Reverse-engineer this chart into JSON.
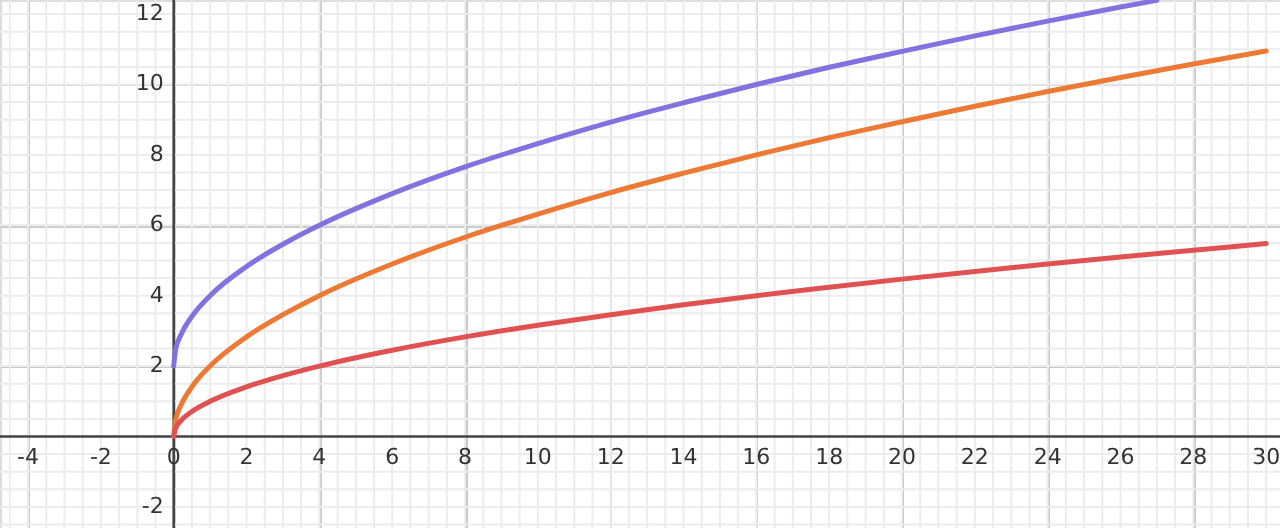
{
  "chart_data": {
    "type": "line",
    "xlim": [
      -4.77,
      30.38
    ],
    "ylim": [
      -2.6,
      12.4
    ],
    "xticks": [
      -4,
      -2,
      0,
      2,
      4,
      6,
      8,
      10,
      12,
      14,
      16,
      18,
      20,
      22,
      24,
      26,
      28,
      30
    ],
    "yticks": [
      -2,
      2,
      4,
      6,
      8,
      10,
      12
    ],
    "grid": true,
    "line_style": "solid",
    "marker": "none",
    "x": [
      0,
      0.05,
      0.2,
      0.5,
      1,
      2,
      3,
      4,
      6,
      8,
      10,
      12,
      14,
      16,
      18,
      20,
      22,
      24,
      26,
      28,
      30
    ],
    "series": [
      {
        "color": "#8371e0",
        "x": [
          0,
          0.05,
          0.2,
          0.5,
          1,
          2,
          3,
          4,
          6,
          8,
          10,
          12,
          14,
          16,
          18,
          20,
          22,
          24,
          26,
          27
        ],
        "values": [
          2,
          2.45,
          2.89,
          3.41,
          4,
          4.83,
          5.46,
          6,
          6.9,
          7.66,
          8.32,
          8.93,
          9.48,
          10,
          10.49,
          10.94,
          11.38,
          11.8,
          12.2,
          12.39
        ]
      },
      {
        "color": "#ec7a35",
        "values": [
          0,
          0.45,
          0.89,
          1.41,
          2,
          2.83,
          3.46,
          4,
          4.9,
          5.66,
          6.32,
          6.93,
          7.48,
          8,
          8.49,
          8.94,
          9.38,
          9.8,
          10.2,
          10.58,
          10.95
        ]
      },
      {
        "color": "#e05252",
        "values": [
          0,
          0.22,
          0.45,
          0.71,
          1,
          1.41,
          1.73,
          2,
          2.45,
          2.83,
          3.16,
          3.46,
          3.74,
          4,
          4.24,
          4.47,
          4.69,
          4.9,
          5.1,
          5.29,
          5.48
        ]
      }
    ]
  }
}
